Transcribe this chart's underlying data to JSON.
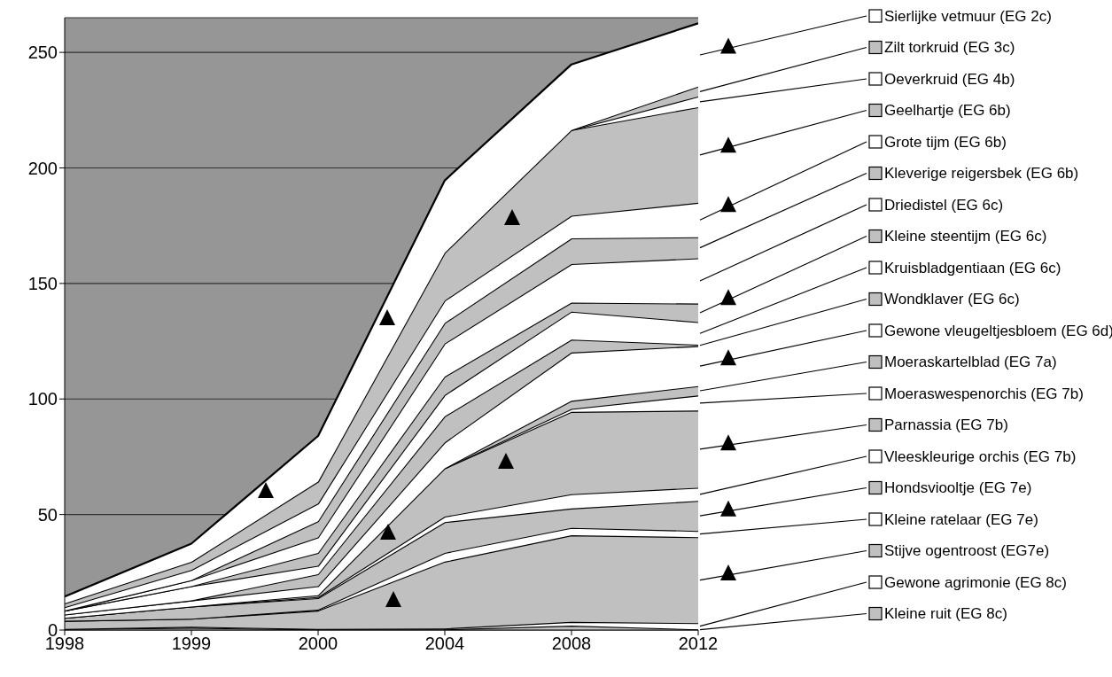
{
  "chart_data": {
    "type": "area",
    "stacked": true,
    "categories": [
      "1998",
      "1999",
      "2000",
      "2004",
      "2008",
      "2012"
    ],
    "ylim": [
      0,
      265
    ],
    "yticks": [
      0,
      50,
      100,
      150,
      200,
      250
    ],
    "grid": "y",
    "legend": "right",
    "series": [
      {
        "name": "Kleine ruit (EG 8c)",
        "color": "#c0c0c0",
        "values": [
          0.5,
          1.0,
          0.3,
          0.3,
          1.9,
          0.3
        ]
      },
      {
        "name": "Gewone agrimonie (EG 8c)",
        "color": "#ffffff",
        "values": [
          0,
          0.4,
          0.2,
          0.4,
          1.6,
          2.7
        ]
      },
      {
        "name": "Stijve ogentroost (EG7e)",
        "color": "#c0c0c0",
        "values": [
          3.5,
          3.5,
          7.9,
          28.9,
          37.5,
          37.2
        ]
      },
      {
        "name": "Kleine ratelaar (EG 7e)",
        "color": "#ffffff",
        "values": [
          0,
          0,
          0.4,
          3.8,
          3.2,
          2.7
        ]
      },
      {
        "name": "Hondsviooltje (EG 7e)",
        "color": "#c0c0c0",
        "values": [
          1.3,
          5.3,
          5.0,
          13.3,
          8.4,
          13
        ]
      },
      {
        "name": "Vleeskleurige orchis (EG 7b)",
        "color": "#ffffff",
        "values": [
          0,
          0,
          0.5,
          2.4,
          6.2,
          5.7
        ]
      },
      {
        "name": "Parnassia (EG 7b)",
        "color": "#c0c0c0",
        "values": [
          0,
          0,
          0.8,
          20.9,
          35.6,
          33.4
        ]
      },
      {
        "name": "Moeraswespenorchis (EG 7b)",
        "color": "#ffffff",
        "values": [
          null,
          null,
          null,
          0,
          1.3,
          6.5
        ]
      },
      {
        "name": "Moeraskartelblad (EG 7a)",
        "color": "#c0c0c0",
        "values": [
          null,
          null,
          null,
          0,
          3.5,
          4.1
        ]
      },
      {
        "name": "Gewone vleugeltjesbloem (EG 6d)",
        "color": "#ffffff",
        "values": [
          1.4,
          2.6,
          3.9,
          11.2,
          20.9,
          17.3
        ]
      },
      {
        "name": "Wondklaver (EG 6c)",
        "color": "#c0c0c0",
        "values": [
          0,
          0,
          5.2,
          11.3,
          5.6,
          0.6
        ]
      },
      {
        "name": "Kruisbladgentiaan (EG 6c)",
        "color": "#ffffff",
        "values": [
          1.7,
          6.2,
          3.6,
          9.2,
          12.1,
          9.8
        ]
      },
      {
        "name": "Kleine steentijm (EG 6c)",
        "color": "#c0c0c0",
        "values": [
          0,
          0,
          5.6,
          8,
          3.9,
          8
        ]
      },
      {
        "name": "Driedistel (EG 6c)",
        "color": "#ffffff",
        "values": [
          0,
          2.6,
          6.7,
          14.3,
          16.7,
          19.6
        ]
      },
      {
        "name": "Kleverige reigersbek (EG 6b)",
        "color": "#c0c0c0",
        "values": [
          0,
          0,
          7.0,
          8.9,
          11.1,
          9.1
        ]
      },
      {
        "name": "Grote tijm (EG 6b)",
        "color": "#ffffff",
        "values": [
          1.5,
          4.4,
          7.6,
          9.7,
          9.8,
          14.9
        ]
      },
      {
        "name": "Geelhartje (EG 6b)",
        "color": "#c0c0c0",
        "values": [
          1.6,
          3.5,
          9.5,
          20.7,
          37.1,
          41.4
        ]
      },
      {
        "name": "Oeverkruid (EG 4b)",
        "color": "#ffffff",
        "values": [
          null,
          null,
          null,
          null,
          0,
          4.6
        ]
      },
      {
        "name": "Zilt torkruid (EG 3c)",
        "color": "#c0c0c0",
        "values": [
          null,
          null,
          null,
          null,
          0,
          4.3
        ]
      },
      {
        "name": "Sierlijke vetmuur (EG 2c)",
        "color": "#ffffff",
        "values": [
          3.0,
          7.9,
          19.8,
          31.3,
          28.4,
          27.4
        ]
      }
    ]
  }
}
